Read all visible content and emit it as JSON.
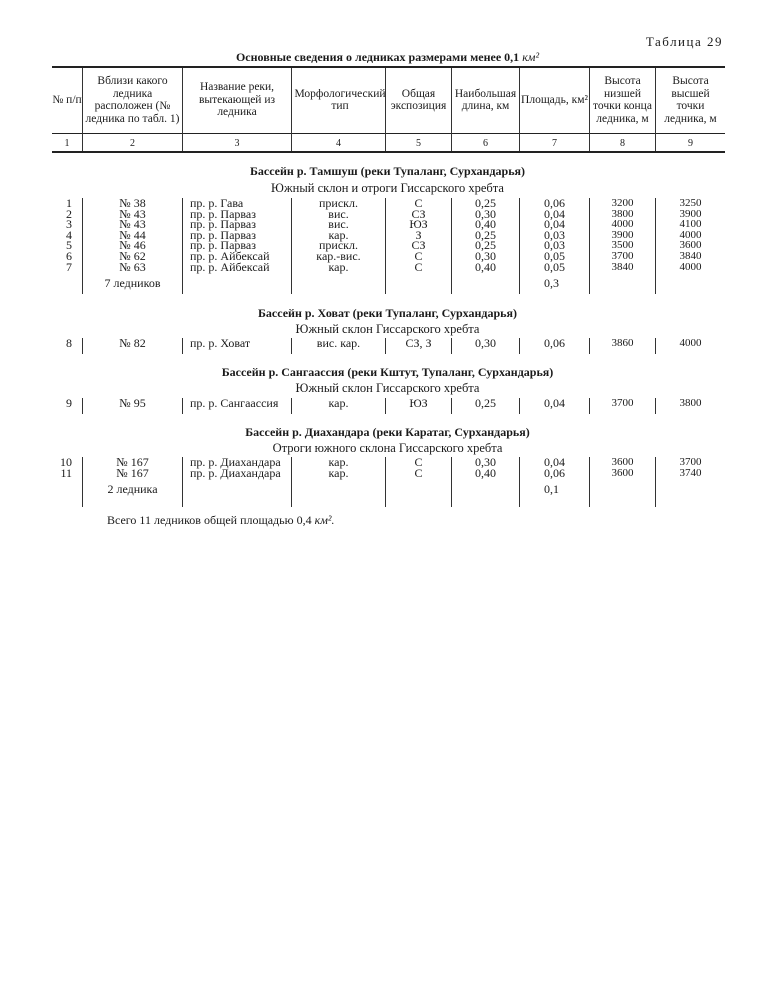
{
  "table_label": "Таблица 29",
  "title": "Основные сведения о ледниках размерами менее 0,1",
  "title_unit": "км²",
  "headers": [
    "№ п/п",
    "Вблизи какого ледника расположен (№ ледника по табл. 1)",
    "Название реки, вытекающей из ледника",
    "Морфологический тип",
    "Общая экспозиция",
    "Наибольшая длина, км",
    "Площадь, км²",
    "Высота низшей точки конца ледника, м",
    "Высота высшей точки ледника, м"
  ],
  "column_numbers": [
    "1",
    "2",
    "3",
    "4",
    "5",
    "6",
    "7",
    "8",
    "9"
  ],
  "sections": [
    {
      "title": "Бассейн р. Тамшуш (реки Тупаланг, Сурхандарья)",
      "subtitle": "Южный склон и отроги Гиссарского хребта",
      "rows": [
        [
          "1",
          "№ 38",
          "пр. р. Гава",
          "прискл.",
          "С",
          "0,25",
          "0,06",
          "3200",
          "3250"
        ],
        [
          "2",
          "№ 43",
          "пр. р. Парваз",
          "вис.",
          "СЗ",
          "0,30",
          "0,04",
          "3800",
          "3900"
        ],
        [
          "3",
          "№ 43",
          "пр. р. Парваз",
          "вис.",
          "ЮЗ",
          "0,40",
          "0,04",
          "4000",
          "4100"
        ],
        [
          "4",
          "№ 44",
          "пр. р. Парваз",
          "кар.",
          "З",
          "0,25",
          "0,03",
          "3900",
          "4000"
        ],
        [
          "5",
          "№ 46",
          "пр. р. Парваз",
          "прискл.",
          "СЗ",
          "0,25",
          "0,03",
          "3500",
          "3600"
        ],
        [
          "6",
          "№ 62",
          "пр. р. Айбексай",
          "кар.-вис.",
          "С",
          "0,30",
          "0,05",
          "3700",
          "3840"
        ],
        [
          "7",
          "№ 63",
          "пр. р. Айбексай",
          "кар.",
          "С",
          "0,40",
          "0,05",
          "3840",
          "4000"
        ]
      ],
      "total_label": "7 ледников",
      "total_area": "0,3"
    },
    {
      "title": "Бассейн р. Ховат (реки Тупаланг, Сурхандарья)",
      "subtitle": "Южный склон Гиссарского хребта",
      "rows": [
        [
          "8",
          "№ 82",
          "пр. р. Ховат",
          "вис. кар.",
          "СЗ, З",
          "0,30",
          "0,06",
          "3860",
          "4000"
        ]
      ]
    },
    {
      "title": "Бассейн р. Сангаассия (реки Кштут, Тупаланг, Сурхандарья)",
      "subtitle": "Южный склон Гиссарского хребта",
      "rows": [
        [
          "9",
          "№ 95",
          "пр. р. Сангаассия",
          "кар.",
          "ЮЗ",
          "0,25",
          "0,04",
          "3700",
          "3800"
        ]
      ]
    },
    {
      "title": "Бассейн р. Диахандара (реки Каратаг, Сурхандарья)",
      "subtitle": "Отроги южного склона Гиссарского хребта",
      "rows": [
        [
          "10",
          "№ 167",
          "пр. р. Диахандара",
          "кар.",
          "С",
          "0,30",
          "0,04",
          "3600",
          "3700"
        ],
        [
          "11",
          "№ 167",
          "пр. р. Диахандара",
          "кар.",
          "С",
          "0,40",
          "0,06",
          "3600",
          "3740"
        ]
      ],
      "total_label": "2 ледника",
      "total_area": "0,1"
    }
  ],
  "footer": "Всего 11 ледников общей площадью 0,4",
  "footer_unit": "км²."
}
